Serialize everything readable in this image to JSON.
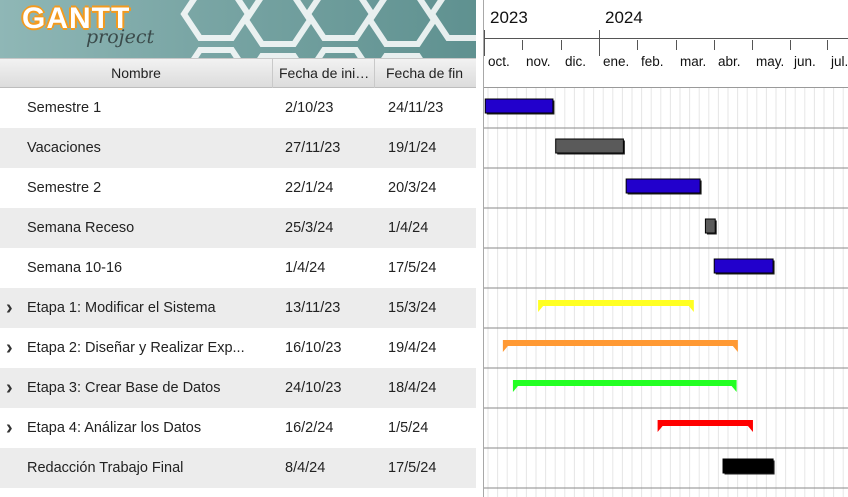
{
  "logo": {
    "main": "GANTT",
    "sub": "project"
  },
  "columns": {
    "name": "Nombre",
    "start": "Fecha de ini…",
    "end": "Fecha de fin"
  },
  "tasks": [
    {
      "name": "Semestre 1",
      "start": "2/10/23",
      "end": "24/11/23",
      "expandable": false,
      "kind": "task",
      "color": "#2200cc"
    },
    {
      "name": "Vacaciones",
      "start": "27/11/23",
      "end": "19/1/24",
      "expandable": false,
      "kind": "task",
      "color": "#5a5a5a"
    },
    {
      "name": "Semestre 2",
      "start": "22/1/24",
      "end": "20/3/24",
      "expandable": false,
      "kind": "task",
      "color": "#2200cc"
    },
    {
      "name": "Semana Receso",
      "start": "25/3/24",
      "end": "1/4/24",
      "expandable": false,
      "kind": "task",
      "color": "#5a5a5a"
    },
    {
      "name": "Semana 10-16",
      "start": "1/4/24",
      "end": "17/5/24",
      "expandable": false,
      "kind": "task",
      "color": "#2200cc"
    },
    {
      "name": "Etapa 1: Modificar el Sistema",
      "start": "13/11/23",
      "end": "15/3/24",
      "expandable": true,
      "kind": "summary",
      "color": "#ffff22"
    },
    {
      "name": "Etapa 2: Diseñar y Realizar Exp...",
      "start": "16/10/23",
      "end": "19/4/24",
      "expandable": true,
      "kind": "summary",
      "color": "#ff9933"
    },
    {
      "name": "Etapa 3: Crear Base de Datos",
      "start": "24/10/23",
      "end": "18/4/24",
      "expandable": true,
      "kind": "summary",
      "color": "#22ff22"
    },
    {
      "name": "Etapa 4: Análizar los Datos",
      "start": "16/2/24",
      "end": "1/5/24",
      "expandable": true,
      "kind": "summary",
      "color": "#ff0000"
    },
    {
      "name": "Redacción Trabajo Final",
      "start": "8/4/24",
      "end": "17/5/24",
      "expandable": false,
      "kind": "task",
      "color": "#000000"
    }
  ],
  "timeline": {
    "years": [
      "2023",
      "2024"
    ],
    "months": [
      "oct.",
      "nov.",
      "dic.",
      "ene.",
      "feb.",
      "mar.",
      "abr.",
      "may.",
      "jun.",
      "jul."
    ]
  }
}
